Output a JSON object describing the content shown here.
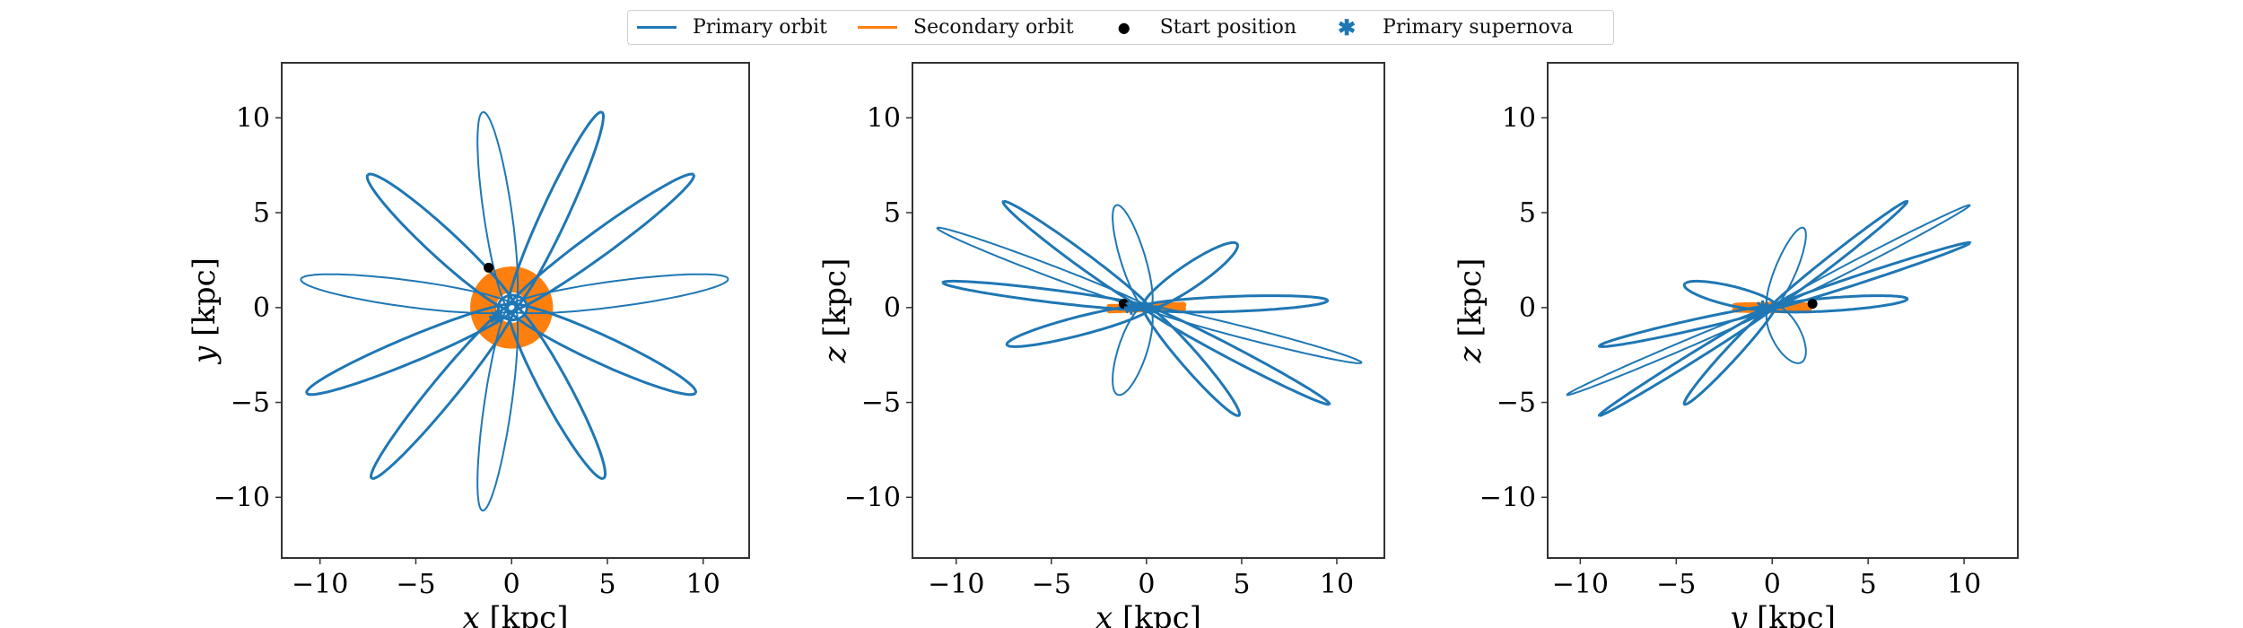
{
  "legend": {
    "items": [
      {
        "label": "Primary orbit",
        "kind": "line",
        "color": "#1f77b4"
      },
      {
        "label": "Secondary orbit",
        "kind": "line",
        "color": "#ff7f0e"
      },
      {
        "label": "Start position",
        "kind": "dot",
        "color": "#000000"
      },
      {
        "label": "Primary supernova",
        "kind": "asterisk",
        "color": "#1f77b4"
      }
    ]
  },
  "chart_data": [
    {
      "type": "line",
      "xlabel_var": "x",
      "xlabel_unit": "[kpc]",
      "ylabel_var": "y",
      "ylabel_unit": "[kpc]",
      "xlim": [
        -12.0,
        12.4
      ],
      "ylim": [
        -13.2,
        12.9
      ],
      "xticks": [
        -10,
        -5,
        0,
        5,
        10
      ],
      "yticks": [
        -10,
        -5,
        0,
        5,
        10
      ],
      "xtick_labels": [
        "−10",
        "−5",
        "0",
        "5",
        "10"
      ],
      "ytick_labels": [
        "−10",
        "−5",
        "0",
        "5",
        "10"
      ],
      "proj": [
        0,
        1
      ],
      "grid": false
    },
    {
      "type": "line",
      "xlabel_var": "x",
      "xlabel_unit": "[kpc]",
      "ylabel_var": "z",
      "ylabel_unit": "[kpc]",
      "xlim": [
        -12.3,
        12.5
      ],
      "ylim": [
        -13.2,
        12.9
      ],
      "xticks": [
        -10,
        -5,
        0,
        5,
        10
      ],
      "yticks": [
        -10,
        -5,
        0,
        5,
        10
      ],
      "xtick_labels": [
        "−10",
        "−5",
        "0",
        "5",
        "10"
      ],
      "ytick_labels": [
        "−10",
        "−5",
        "0",
        "5",
        "10"
      ],
      "proj": [
        0,
        2
      ],
      "grid": false
    },
    {
      "type": "line",
      "xlabel_var": "y",
      "xlabel_unit": "[kpc]",
      "ylabel_var": "z",
      "ylabel_unit": "[kpc]",
      "xlim": [
        -11.7,
        12.8
      ],
      "ylim": [
        -13.2,
        12.9
      ],
      "xticks": [
        -10,
        -5,
        0,
        5,
        10
      ],
      "yticks": [
        -10,
        -5,
        0,
        5,
        10
      ],
      "xtick_labels": [
        "−10",
        "−5",
        "0",
        "5",
        "10"
      ],
      "ytick_labels": [
        "−10",
        "−5",
        "0",
        "5",
        "10"
      ],
      "proj": [
        1,
        2
      ],
      "grid": false
    }
  ],
  "orbit_data": {
    "primary_apocenters_xyz": [
      [
        -1.5,
        10.3,
        5.4
      ],
      [
        4.7,
        10.3,
        3.4
      ],
      [
        9.5,
        7.0,
        0.4
      ],
      [
        11.3,
        1.5,
        -2.9
      ],
      [
        9.6,
        -4.5,
        -5.1
      ],
      [
        4.8,
        -9.0,
        -5.7
      ],
      [
        -1.5,
        -10.7,
        -4.6
      ],
      [
        -7.3,
        -9.0,
        -2.0
      ],
      [
        -10.7,
        -4.5,
        1.3
      ],
      [
        -11.0,
        1.5,
        4.2
      ],
      [
        -7.5,
        7.0,
        5.6
      ]
    ],
    "primary_pericenter_kpc": 0.8,
    "secondary_radius_range_kpc": [
      0.8,
      2.0
    ],
    "secondary_z_amplitude_kpc": 0.15,
    "start_position_xyz": [
      -1.2,
      2.1,
      0.2
    ],
    "primary_supernova_xyz": [
      -0.8,
      -0.5,
      0.0
    ],
    "colors": {
      "primary": "#1f77b4",
      "secondary": "#ff7f0e",
      "start": "#000000"
    }
  }
}
